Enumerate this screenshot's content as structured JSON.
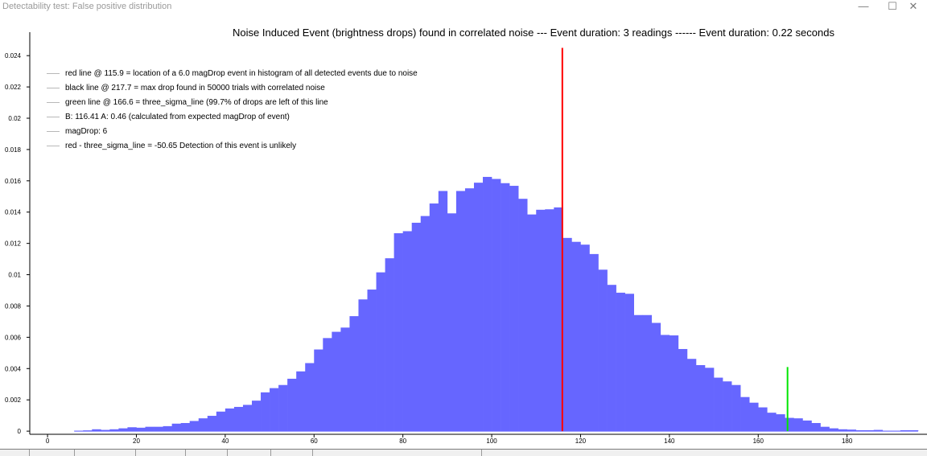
{
  "window": {
    "title": "Detectability test: False positive distribution",
    "minimize_glyph": "—",
    "maximize_glyph": "☐",
    "close_glyph": "✕"
  },
  "chart_data": {
    "type": "bar",
    "title": "Noise Induced Event (brightness drops) found in correlated noise --- Event duration: 3 readings ------ Event duration: 0.22 seconds",
    "xlabel": "",
    "ylabel": "",
    "xlim": [
      -4,
      198
    ],
    "ylim": [
      -0.0002,
      0.0255
    ],
    "x_ticks": [
      0,
      20,
      40,
      60,
      80,
      100,
      120,
      140,
      160,
      180
    ],
    "y_ticks": [
      0,
      0.002,
      0.004,
      0.006,
      0.008,
      0.01,
      0.012,
      0.014,
      0.016,
      0.018,
      0.02,
      0.022,
      0.024
    ],
    "y_tick_labels": [
      "0",
      "0.002",
      "0.004",
      "0.006",
      "0.008",
      "0.01",
      "0.012",
      "0.014",
      "0.016",
      "0.018",
      "0.02",
      "0.022",
      "0.024"
    ],
    "grid": false,
    "legend_placement": "top-left",
    "bin_width": 2,
    "bins_x": [
      7,
      9,
      11,
      13,
      15,
      17,
      19,
      21,
      23,
      25,
      27,
      29,
      31,
      33,
      35,
      37,
      39,
      41,
      43,
      45,
      47,
      49,
      51,
      53,
      55,
      57,
      59,
      61,
      63,
      65,
      67,
      69,
      71,
      73,
      75,
      77,
      79,
      81,
      83,
      85,
      87,
      89,
      91,
      93,
      95,
      97,
      99,
      101,
      103,
      105,
      107,
      109,
      111,
      113,
      115,
      117,
      119,
      121,
      123,
      125,
      127,
      129,
      131,
      133,
      135,
      137,
      139,
      141,
      143,
      145,
      147,
      149,
      151,
      153,
      155,
      157,
      159,
      161,
      163,
      165,
      167,
      169,
      171,
      173,
      175,
      177,
      179,
      181,
      183,
      185,
      187,
      189,
      191,
      193,
      195
    ],
    "bins_y": [
      3e-05,
      5e-05,
      0.00012,
      8e-05,
      0.00012,
      0.00018,
      0.00025,
      0.00022,
      0.00028,
      0.00028,
      0.00032,
      0.00048,
      0.00052,
      0.00065,
      0.00082,
      0.00098,
      0.00125,
      0.00145,
      0.00155,
      0.00168,
      0.00195,
      0.00248,
      0.00275,
      0.00295,
      0.00335,
      0.00382,
      0.00435,
      0.00522,
      0.00595,
      0.00635,
      0.00662,
      0.00735,
      0.00842,
      0.00905,
      0.01015,
      0.01105,
      0.01265,
      0.01278,
      0.01332,
      0.01375,
      0.01455,
      0.01535,
      0.01392,
      0.01535,
      0.01552,
      0.01588,
      0.01625,
      0.01612,
      0.01585,
      0.01568,
      0.01485,
      0.01385,
      0.01415,
      0.01418,
      0.0143,
      0.01235,
      0.0121,
      0.01192,
      0.01132,
      0.01032,
      0.00935,
      0.00885,
      0.00878,
      0.00742,
      0.00742,
      0.00692,
      0.00615,
      0.00612,
      0.00525,
      0.00462,
      0.00422,
      0.00405,
      0.00342,
      0.00318,
      0.00295,
      0.00218,
      0.00182,
      0.00152,
      0.00118,
      0.00108,
      0.00085,
      0.00082,
      0.00068,
      0.00052,
      0.00028,
      0.00018,
      0.00012,
      0.0001,
      6e-05,
      6e-05,
      8e-05,
      3e-05,
      3e-05,
      6e-05,
      6e-05
    ],
    "bar_color": "#6666ff",
    "vlines": [
      {
        "x": 115.9,
        "y_max": 0.0245,
        "color": "#ff0000"
      },
      {
        "x": 166.6,
        "y_max": 0.0041,
        "color": "#00e600"
      }
    ]
  },
  "legend": {
    "entries": [
      "red line @ 115.9 = location of a 6.0 magDrop event in histogram of all detected events due to noise",
      "black line @ 217.7 = max drop found in 50000 trials with correlated noise",
      "green line @ 166.6 = three_sigma_line (99.7% of drops are left of this line",
      "B: 116.41 A: 0.46 (calculated from expected magDrop of event)",
      "magDrop: 6",
      "red - three_sigma_line = -50.65 Detection of this event is unlikely"
    ]
  }
}
